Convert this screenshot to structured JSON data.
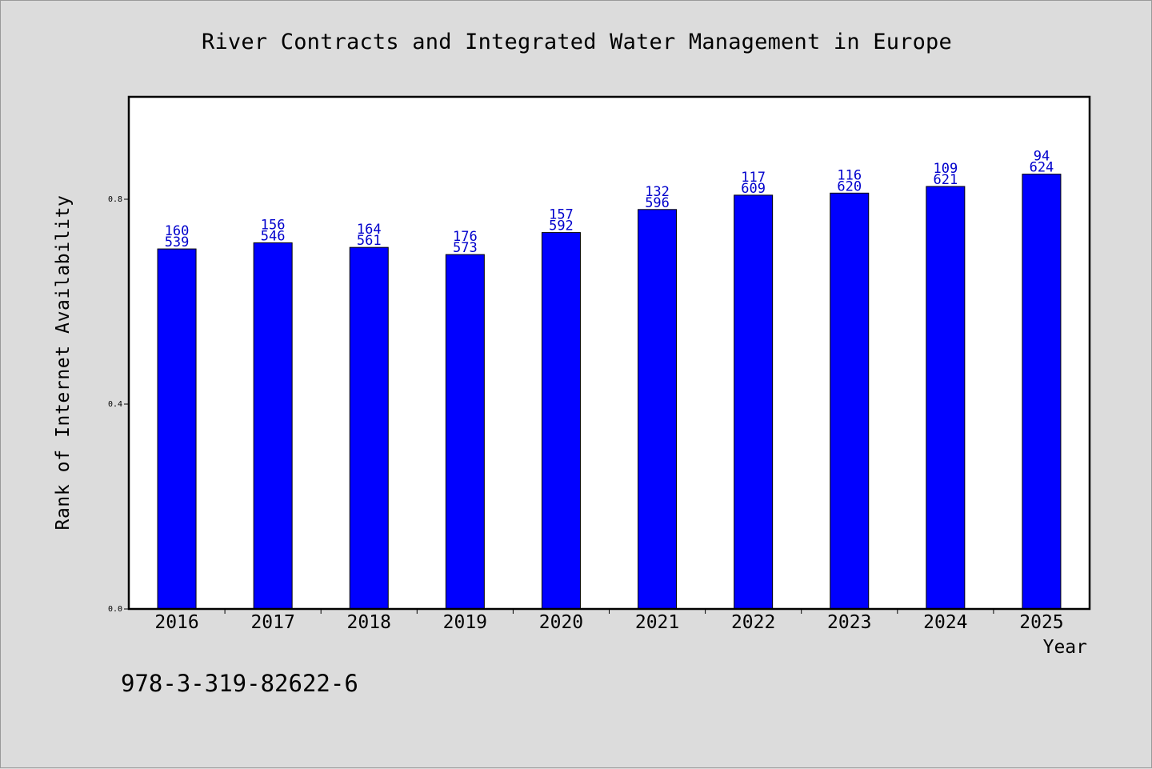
{
  "chart_data": {
    "type": "bar",
    "title": "River Contracts and Integrated Water Management in Europe",
    "xlabel": "Year",
    "ylabel": "Rank of Internet Availability",
    "ylim": [
      0,
      1.0
    ],
    "yticks": [
      0.0,
      0.4,
      0.8
    ],
    "ytick_labels": [
      "0.0",
      "0.4",
      "0.8"
    ],
    "grid": false,
    "categories": [
      "2016",
      "2017",
      "2018",
      "2019",
      "2020",
      "2021",
      "2022",
      "2023",
      "2024",
      "2025"
    ],
    "values": [
      0.703,
      0.715,
      0.706,
      0.692,
      0.735,
      0.78,
      0.808,
      0.812,
      0.825,
      0.849
    ],
    "label_top": [
      "160",
      "156",
      "164",
      "176",
      "157",
      "132",
      "117",
      "116",
      "109",
      "94"
    ],
    "label_bottom": [
      "539",
      "546",
      "561",
      "573",
      "592",
      "596",
      "609",
      "620",
      "621",
      "624"
    ],
    "bar_color": "#0000ff",
    "label_color": "#0000cc"
  },
  "footer": {
    "isbn": "978-3-319-82622-6"
  }
}
